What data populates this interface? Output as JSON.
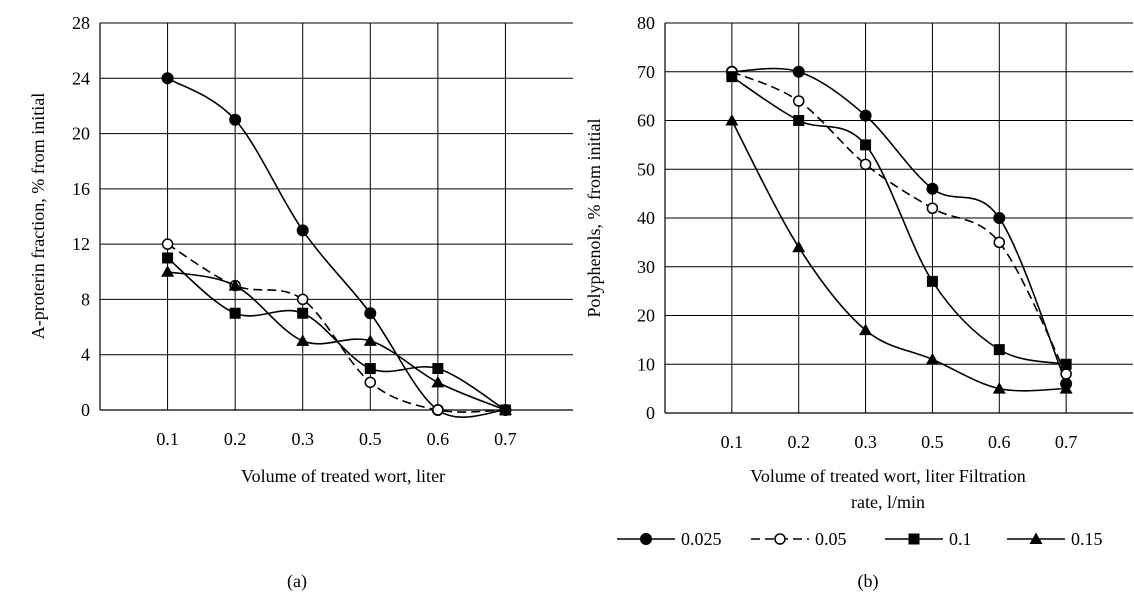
{
  "chart_data": [
    {
      "type": "line",
      "panel_label": "(a)",
      "title": "",
      "xlabel": "Volume of treated wort, liter",
      "ylabel": "A-proterin fraction, % from initial",
      "categories": [
        "0.1",
        "0.2",
        "0.3",
        "0.5",
        "0.6",
        "0.7"
      ],
      "ylim": [
        0,
        28
      ],
      "yticks": [
        0,
        4,
        8,
        12,
        16,
        20,
        24,
        28
      ],
      "grid": true,
      "series": [
        {
          "name": "0.025",
          "marker": "filled-circle",
          "dash": "solid",
          "values": [
            24,
            21,
            13,
            7,
            0,
            0
          ]
        },
        {
          "name": "0.05",
          "marker": "open-circle",
          "dash": "dashed",
          "values": [
            12,
            9,
            8,
            2,
            0,
            0
          ]
        },
        {
          "name": "0.1",
          "marker": "filled-square",
          "dash": "solid",
          "values": [
            11,
            7,
            7,
            3,
            3,
            0
          ]
        },
        {
          "name": "0.15",
          "marker": "filled-triangle",
          "dash": "solid",
          "values": [
            10,
            9,
            5,
            5,
            2,
            0
          ]
        }
      ]
    },
    {
      "type": "line",
      "panel_label": "(b)",
      "title": "",
      "xlabel": "Volume of treated wort, liter Filtration rate, l/min",
      "xlabel_lines": [
        "Volume of treated wort, liter Filtration",
        "rate, l/min"
      ],
      "ylabel": "Polyphenols, % from initial",
      "categories": [
        "0.1",
        "0.2",
        "0.3",
        "0.5",
        "0.6",
        "0.7"
      ],
      "ylim": [
        0,
        80
      ],
      "yticks": [
        0,
        10,
        20,
        30,
        40,
        50,
        60,
        70,
        80
      ],
      "grid": true,
      "legend_position": "bottom",
      "series": [
        {
          "name": "0.025",
          "marker": "filled-circle",
          "dash": "solid",
          "values": [
            70,
            70,
            61,
            46,
            40,
            6
          ]
        },
        {
          "name": "0.05",
          "marker": "open-circle",
          "dash": "dashed",
          "values": [
            70,
            64,
            51,
            42,
            35,
            8
          ]
        },
        {
          "name": "0.1",
          "marker": "filled-square",
          "dash": "solid",
          "values": [
            69,
            60,
            55,
            27,
            13,
            10
          ]
        },
        {
          "name": "0.15",
          "marker": "filled-triangle",
          "dash": "solid",
          "values": [
            60,
            34,
            17,
            11,
            5,
            5
          ]
        }
      ]
    }
  ]
}
